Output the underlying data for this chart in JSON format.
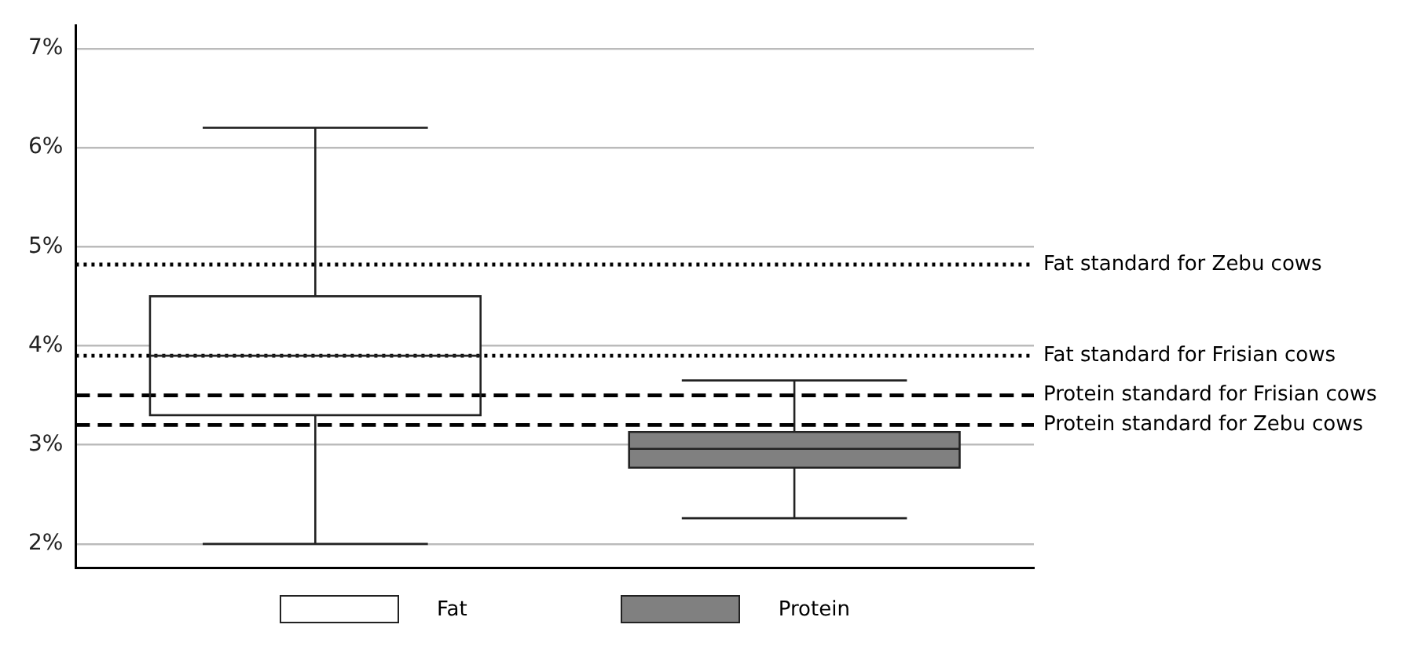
{
  "chart_data": {
    "type": "box",
    "categories": [
      null,
      null
    ],
    "series": [
      {
        "name": "Fat",
        "color": "#ffffff",
        "boxes": [
          {
            "low": 2.0,
            "q1": 3.3,
            "median": 3.9,
            "q3": 4.5,
            "high": 6.2
          },
          null
        ]
      },
      {
        "name": "Protein",
        "color": "#808080",
        "boxes": [
          null,
          {
            "low": 2.26,
            "q1": 2.77,
            "median": 2.96,
            "q3": 3.13,
            "high": 3.65
          }
        ]
      }
    ],
    "ylim": [
      1.76,
      7.23
    ],
    "yticks": [
      {
        "value": 2,
        "label": "2%"
      },
      {
        "value": 3,
        "label": "3%"
      },
      {
        "value": 4,
        "label": "4%"
      },
      {
        "value": 5,
        "label": "5%"
      },
      {
        "value": 6,
        "label": "6%"
      },
      {
        "value": 7,
        "label": "7%"
      }
    ],
    "ref_lines": [
      {
        "axis": "y",
        "value": 4.82,
        "label": "Fat standard for Zebu cows",
        "color": "#000000",
        "line_style": "dotted"
      },
      {
        "axis": "y",
        "value": 3.9,
        "label": "Fat standard for Frisian cows",
        "color": "#000000",
        "line_style": "dotted"
      },
      {
        "axis": "y",
        "value": 3.5,
        "label": "Protein standard for Frisian cows",
        "color": "#000000",
        "line_style": "dashed"
      },
      {
        "axis": "y",
        "value": 3.2,
        "label": "Protein standard for Zebu cows",
        "color": "#000000",
        "line_style": "dashed"
      }
    ],
    "grid": "y",
    "legend": "bottom",
    "tick_labels": "y"
  }
}
